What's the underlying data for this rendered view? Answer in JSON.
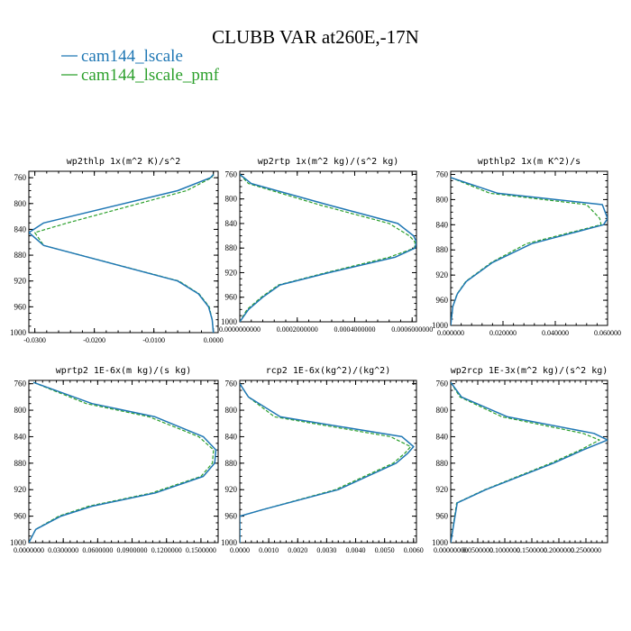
{
  "figure": {
    "title": "CLUBB VAR at260E,-17N",
    "legend": [
      {
        "label": "cam144_lscale",
        "color": "#1f77b4",
        "dash": "solid"
      },
      {
        "label": "cam144_lscale_pmf",
        "color": "#2ca02c",
        "dash": "dashed"
      }
    ]
  },
  "chart_data": [
    {
      "type": "line",
      "title": "wp2thlp   1x(m^2 K)/s^2",
      "ylim": [
        1000,
        750
      ],
      "xlim": [
        -0.031,
        0.0008
      ],
      "y_ticks": [
        760,
        800,
        840,
        880,
        920,
        960,
        1000
      ],
      "x_ticks": [
        -0.03,
        -0.02,
        -0.01,
        0.0
      ],
      "x_tick_labels": [
        "-0.0300",
        "-0.0200",
        "-0.0100",
        "0.0000"
      ],
      "y": [
        755,
        760,
        780,
        830,
        845,
        865,
        920,
        940,
        960,
        980,
        1000
      ],
      "series": [
        {
          "name": "cam144_lscale",
          "values": [
            0.0,
            -0.0005,
            -0.006,
            -0.0285,
            -0.031,
            -0.0285,
            -0.006,
            -0.0025,
            -0.0008,
            -0.0002,
            0.0
          ]
        },
        {
          "name": "cam144_lscale_pmf",
          "values": [
            0.0,
            -0.0003,
            -0.0045,
            -0.0245,
            -0.03,
            -0.0285,
            -0.0058,
            -0.0024,
            -0.0007,
            -0.0002,
            0.0
          ]
        }
      ]
    },
    {
      "type": "line",
      "title": "wp2rtp   1x(m^2 kg)/(s^2 kg)",
      "ylim": [
        1000,
        755
      ],
      "xlim": [
        0,
        0.000615
      ],
      "y_ticks": [
        760,
        800,
        840,
        880,
        920,
        960,
        1000
      ],
      "x_ticks": [
        0.0,
        0.0002,
        0.0004,
        0.0006
      ],
      "x_tick_labels": [
        "0.0000000000",
        "0.0002000000",
        "0.0004000000",
        "0.0006000000"
      ],
      "y": [
        760,
        775,
        810,
        840,
        860,
        870,
        880,
        895,
        920,
        940,
        960,
        980,
        1000
      ],
      "series": [
        {
          "name": "cam144_lscale",
          "values": [
            0.0,
            4e-05,
            0.00031,
            0.00055,
            0.000605,
            0.000615,
            0.00061,
            0.00054,
            0.00031,
            0.00014,
            8e-05,
            3e-05,
            0.0
          ]
        },
        {
          "name": "cam144_lscale_pmf",
          "values": [
            0.0,
            3e-05,
            0.00028,
            0.00052,
            0.00059,
            0.00061,
            0.000608,
            0.00052,
            0.0003,
            0.000135,
            7.5e-05,
            2.5e-05,
            0.0
          ]
        }
      ]
    },
    {
      "type": "line",
      "title": "wpthlp2   1x(m K^2)/s",
      "ylim": [
        1000,
        755
      ],
      "xlim": [
        0,
        0.06
      ],
      "y_ticks": [
        760,
        800,
        840,
        880,
        920,
        960,
        1000
      ],
      "x_ticks": [
        0.0,
        0.02,
        0.04,
        0.06
      ],
      "x_tick_labels": [
        "0.000000",
        "0.020000",
        "0.040000",
        "0.060000"
      ],
      "y": [
        765,
        790,
        808,
        830,
        840,
        870,
        900,
        930,
        950,
        970,
        1000
      ],
      "series": [
        {
          "name": "cam144_lscale",
          "values": [
            0.0,
            0.018,
            0.058,
            0.06,
            0.0585,
            0.031,
            0.016,
            0.006,
            0.0025,
            0.0008,
            0.0
          ]
        },
        {
          "name": "cam144_lscale_pmf",
          "values": [
            0.0,
            0.015,
            0.052,
            0.057,
            0.0575,
            0.029,
            0.0155,
            0.0058,
            0.0024,
            0.0008,
            0.0
          ]
        }
      ]
    },
    {
      "type": "line",
      "title": "wprtp2   1E-6x(m kg)/(s kg)",
      "ylim": [
        1000,
        755
      ],
      "xlim": [
        0,
        0.165
      ],
      "y_ticks": [
        760,
        800,
        840,
        880,
        920,
        960,
        1000
      ],
      "x_ticks": [
        0.0,
        0.03,
        0.06,
        0.09,
        0.12,
        0.15
      ],
      "x_tick_labels": [
        "0.0000000",
        "0.0300000",
        "0.0600000",
        "0.0900000",
        "0.1200000",
        "0.1500000"
      ],
      "y": [
        758,
        790,
        810,
        840,
        860,
        880,
        900,
        925,
        945,
        960,
        980,
        1000
      ],
      "series": [
        {
          "name": "cam144_lscale",
          "values": [
            0.004,
            0.055,
            0.11,
            0.152,
            0.163,
            0.162,
            0.152,
            0.11,
            0.055,
            0.028,
            0.006,
            0.0
          ]
        },
        {
          "name": "cam144_lscale_pmf",
          "values": [
            0.004,
            0.05,
            0.105,
            0.148,
            0.161,
            0.16,
            0.15,
            0.107,
            0.052,
            0.026,
            0.006,
            0.0
          ]
        }
      ]
    },
    {
      "type": "line",
      "title": "rcp2   1E-6x(kg^2)/(kg^2)",
      "ylim": [
        1000,
        755
      ],
      "xlim": [
        0,
        0.0061
      ],
      "y_ticks": [
        760,
        800,
        840,
        880,
        920,
        960,
        1000
      ],
      "x_ticks": [
        0.0,
        0.001,
        0.002,
        0.003,
        0.004,
        0.005,
        0.006
      ],
      "x_tick_labels": [
        "0.0000",
        "0.0010",
        "0.0020",
        "0.0030",
        "0.0040",
        "0.0050",
        "0.0060"
      ],
      "y": [
        760,
        780,
        810,
        840,
        855,
        865,
        880,
        920,
        950,
        960,
        1000
      ],
      "series": [
        {
          "name": "cam144_lscale",
          "values": [
            0.0,
            0.0003,
            0.0014,
            0.0056,
            0.006,
            0.0058,
            0.0054,
            0.0034,
            0.0008,
            0.0,
            0.0
          ]
        },
        {
          "name": "cam144_lscale_pmf",
          "values": [
            0.0,
            0.0003,
            0.0012,
            0.0052,
            0.0059,
            0.0057,
            0.0053,
            0.0033,
            0.0008,
            0.0,
            0.0
          ]
        }
      ]
    },
    {
      "type": "line",
      "title": "wp2rcp   1E-3x(m^2 kg)/(s^2 kg)",
      "ylim": [
        1000,
        755
      ],
      "xlim": [
        0,
        0.29
      ],
      "y_ticks": [
        760,
        800,
        840,
        880,
        920,
        960,
        1000
      ],
      "x_ticks": [
        0.0,
        0.05,
        0.1,
        0.15,
        0.2,
        0.25
      ],
      "x_tick_labels": [
        "0.00000000",
        "0.0500000",
        "0.1000000",
        "0.1500000",
        "0.2000000",
        "0.2500000"
      ],
      "y": [
        758,
        780,
        810,
        835,
        845,
        860,
        880,
        920,
        940,
        1000
      ],
      "series": [
        {
          "name": "cam144_lscale",
          "values": [
            0.0,
            0.02,
            0.105,
            0.265,
            0.29,
            0.245,
            0.19,
            0.065,
            0.012,
            0.0
          ]
        },
        {
          "name": "cam144_lscale_pmf",
          "values": [
            0.0,
            0.017,
            0.095,
            0.245,
            0.275,
            0.24,
            0.185,
            0.063,
            0.011,
            0.0
          ]
        }
      ]
    }
  ]
}
